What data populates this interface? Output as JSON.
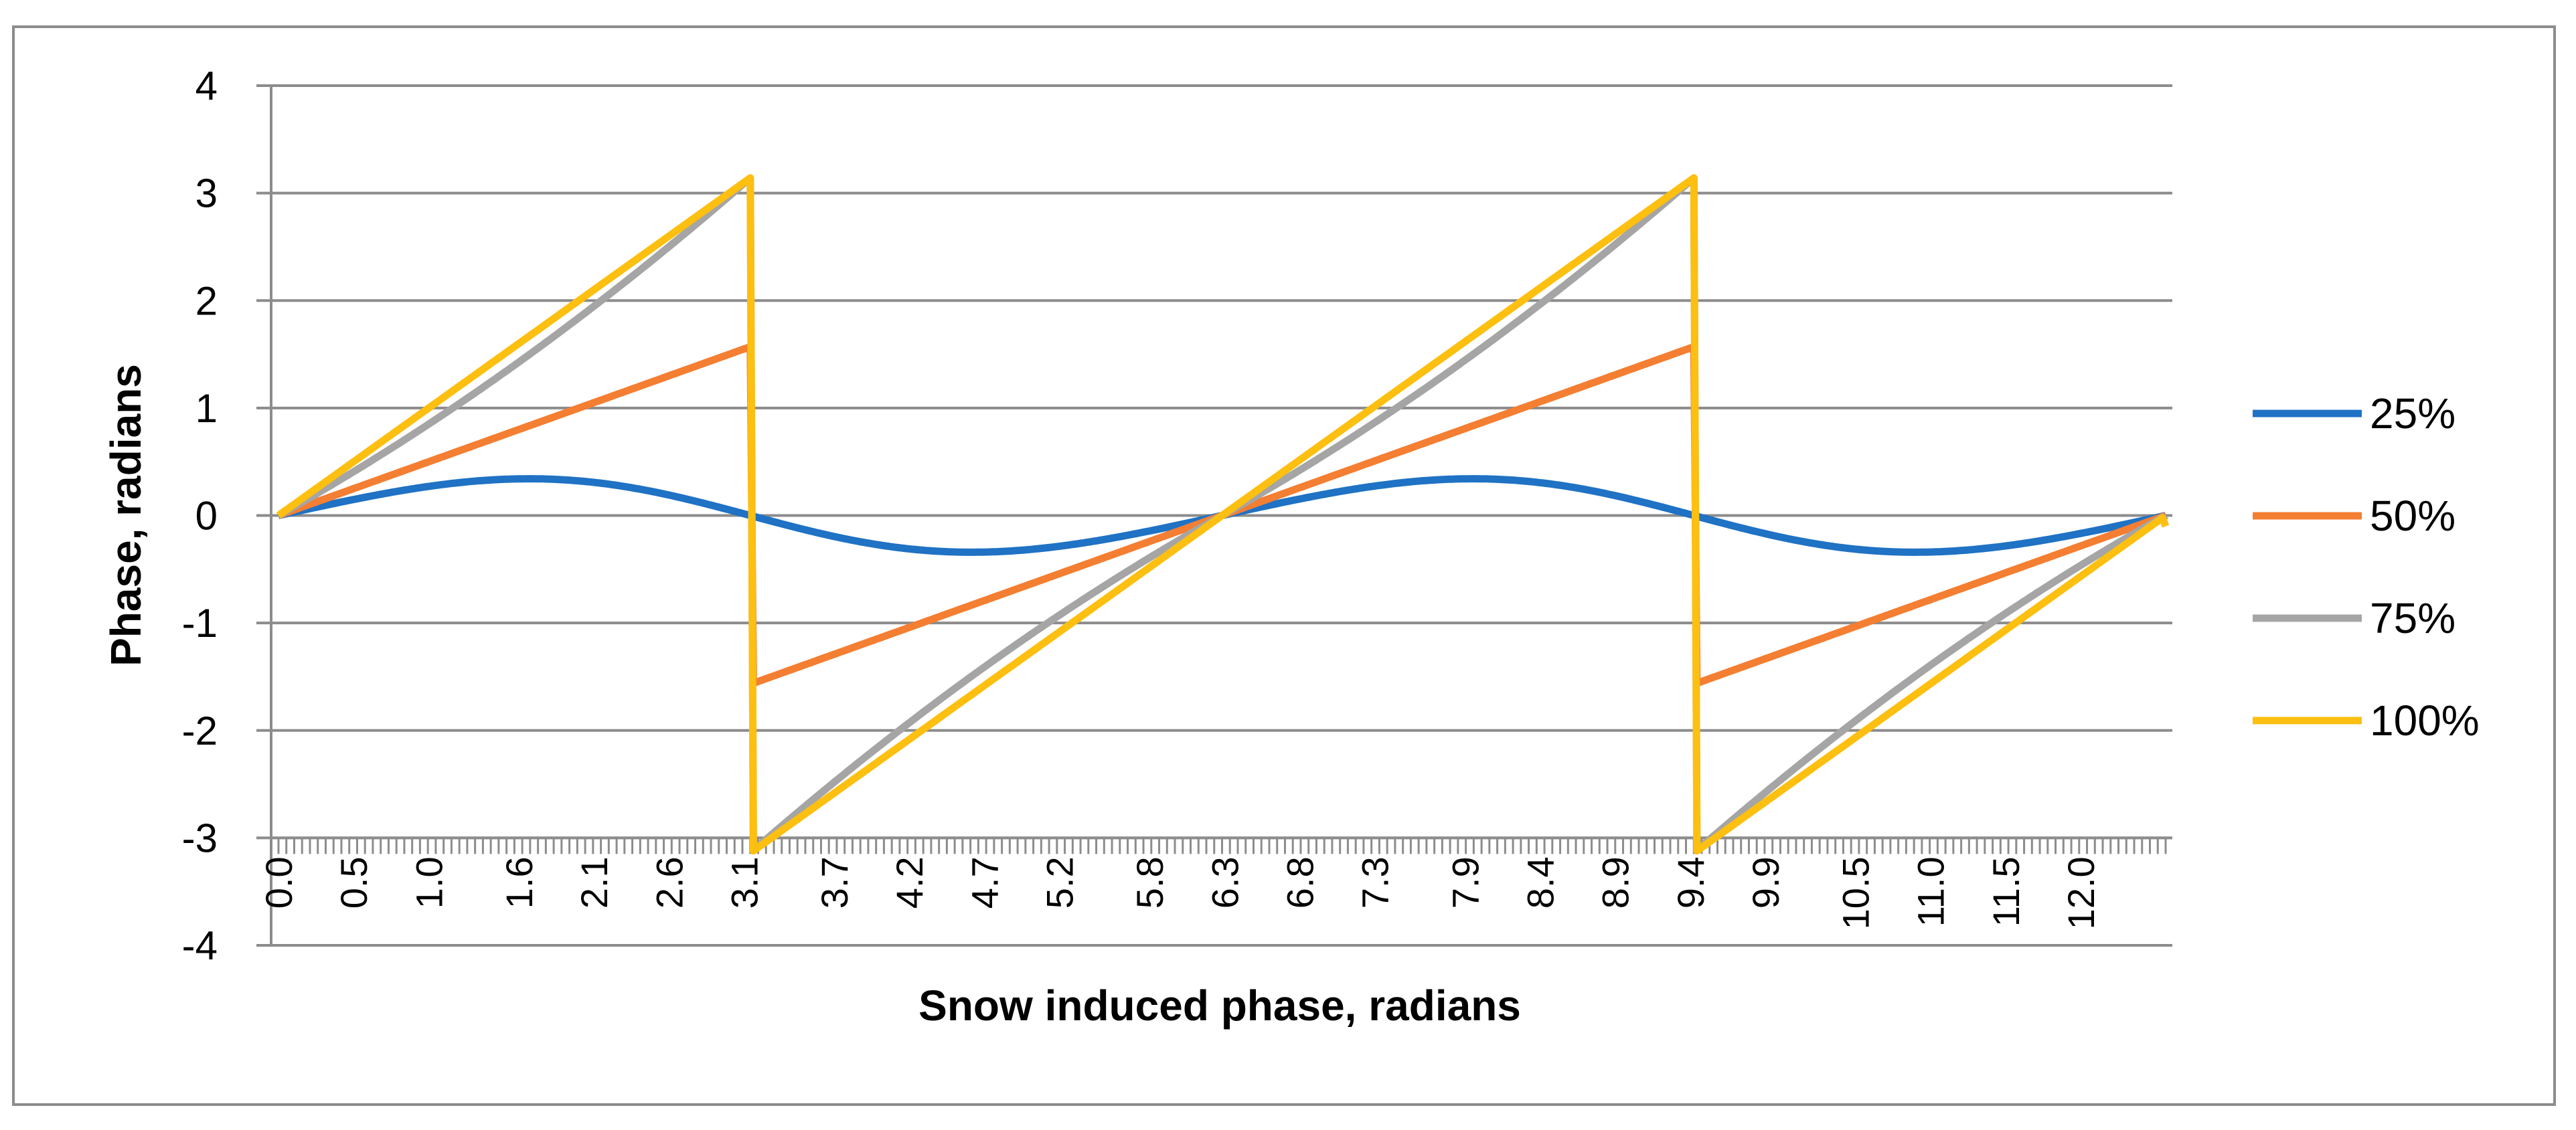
{
  "chart_data": {
    "type": "line",
    "title": "",
    "xlabel": "Snow induced phase, radians",
    "ylabel": "Phase, radians",
    "ylim": [
      -4,
      4
    ],
    "yticks": [
      "4",
      "3",
      "2",
      "1",
      "0",
      "-1",
      "-2",
      "-3",
      "-4"
    ],
    "xlim": [
      0,
      12.566
    ],
    "xticks": [
      "0.0",
      "0.5",
      "1.0",
      "1.6",
      "2.1",
      "2.6",
      "3.1",
      "3.7",
      "4.2",
      "4.7",
      "5.2",
      "5.8",
      "6.3",
      "6.8",
      "7.3",
      "7.9",
      "8.4",
      "8.9",
      "9.4",
      "9.9",
      "10.5",
      "11.0",
      "11.5",
      "12.0"
    ],
    "grid": true,
    "legend": "right",
    "series": [
      {
        "name": "25%",
        "color": "#1f72c4",
        "model": "snow",
        "amplitude": 0.25
      },
      {
        "name": "50%",
        "color": "#f47e32",
        "model": "snow",
        "amplitude": 0.5
      },
      {
        "name": "75%",
        "color": "#a5a5a5",
        "model": "snow",
        "amplitude": 0.75
      },
      {
        "name": "100%",
        "color": "#fdbf10",
        "model": "snow",
        "amplitude": 1.0
      }
    ]
  }
}
